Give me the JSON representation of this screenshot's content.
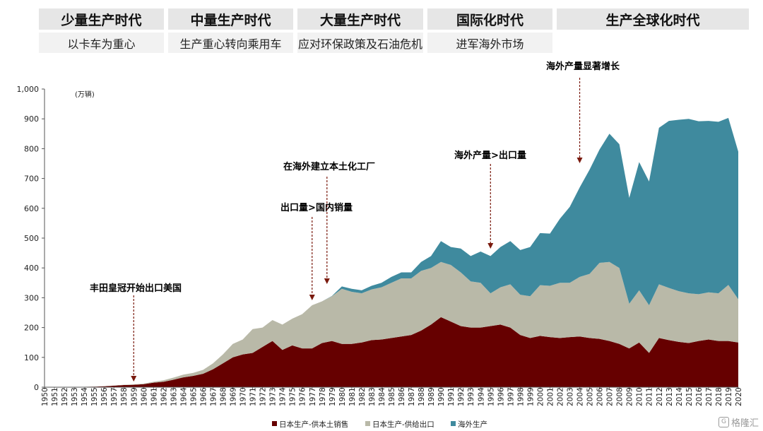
{
  "eras": [
    {
      "title": "少量生产时代",
      "subtitle": "以卡车为重心"
    },
    {
      "title": "中量生产时代",
      "subtitle": "生产重心转向乘用车"
    },
    {
      "title": "大量生产时代",
      "subtitle": "应对环保政策及石油危机"
    },
    {
      "title": "国际化时代",
      "subtitle": "进军海外市场"
    },
    {
      "title": "生产全球化时代",
      "subtitle": ""
    }
  ],
  "chart_data": {
    "type": "area",
    "stacked": true,
    "unit_label": "(万辆)",
    "ylim": [
      0,
      1000
    ],
    "y_ticks": [
      "0",
      "100",
      "200",
      "300",
      "400",
      "500",
      "600",
      "700",
      "800",
      "900",
      "1,000"
    ],
    "x": [
      1950,
      1951,
      1952,
      1953,
      1954,
      1955,
      1956,
      1957,
      1958,
      1959,
      1960,
      1961,
      1962,
      1963,
      1964,
      1965,
      1966,
      1967,
      1968,
      1969,
      1970,
      1971,
      1972,
      1973,
      1974,
      1975,
      1976,
      1977,
      1978,
      1979,
      1980,
      1981,
      1982,
      1983,
      1984,
      1985,
      1986,
      1987,
      1988,
      1989,
      1990,
      1991,
      1992,
      1993,
      1994,
      1995,
      1996,
      1997,
      1998,
      1999,
      2000,
      2001,
      2002,
      2003,
      2004,
      2005,
      2006,
      2007,
      2008,
      2009,
      2010,
      2011,
      2012,
      2013,
      2014,
      2015,
      2016,
      2017,
      2018,
      2019,
      2020
    ],
    "series": [
      {
        "name": "日本生产-供本土销售",
        "color": "#660000",
        "values": [
          0.5,
          0.7,
          0.9,
          1.0,
          1.3,
          1.8,
          3,
          5,
          7,
          8,
          10,
          15,
          18,
          25,
          33,
          38,
          45,
          60,
          80,
          100,
          110,
          115,
          135,
          155,
          125,
          140,
          130,
          130,
          148,
          155,
          145,
          145,
          150,
          158,
          160,
          165,
          170,
          175,
          190,
          210,
          235,
          220,
          205,
          200,
          200,
          205,
          210,
          200,
          175,
          165,
          172,
          168,
          165,
          168,
          170,
          165,
          162,
          155,
          145,
          130,
          150,
          115,
          165,
          158,
          152,
          148,
          155,
          160,
          155,
          155,
          150
        ]
      },
      {
        "name": "日本生产-供给出口",
        "color": "#b9b9a8",
        "values": [
          0,
          0,
          0,
          0,
          0,
          0.2,
          0.3,
          0.5,
          1,
          1.5,
          2,
          3,
          5,
          7,
          9,
          10,
          13,
          20,
          30,
          45,
          50,
          80,
          65,
          70,
          85,
          90,
          115,
          145,
          140,
          150,
          185,
          175,
          165,
          170,
          175,
          185,
          195,
          190,
          200,
          190,
          185,
          190,
          180,
          155,
          150,
          110,
          125,
          145,
          135,
          140,
          170,
          172,
          185,
          182,
          200,
          215,
          255,
          265,
          255,
          150,
          175,
          160,
          180,
          175,
          170,
          167,
          157,
          158,
          160,
          188,
          145
        ]
      },
      {
        "name": "海外生产",
        "color": "#3f8a9e",
        "values": [
          0,
          0,
          0,
          0,
          0,
          0,
          0,
          0,
          0,
          0,
          0,
          0,
          0,
          0,
          0,
          0,
          0,
          0,
          0,
          0,
          0,
          0,
          0,
          0,
          0,
          0,
          0,
          0,
          0,
          1,
          8,
          10,
          10,
          12,
          15,
          20,
          20,
          20,
          30,
          40,
          70,
          60,
          80,
          85,
          105,
          125,
          135,
          145,
          150,
          165,
          175,
          175,
          215,
          255,
          300,
          350,
          380,
          430,
          415,
          355,
          430,
          415,
          525,
          560,
          575,
          585,
          580,
          575,
          575,
          560,
          495
        ]
      }
    ],
    "annotations": [
      {
        "text": "丰田皇冠开始出口美国",
        "year": 1959
      },
      {
        "text": "出口量>国内销量",
        "year": 1977
      },
      {
        "text": "在海外建立本土化工厂",
        "year": 1978.5
      },
      {
        "text": "海外产量>出口量",
        "year": 1995
      },
      {
        "text": "海外产量显著增长",
        "year": 2004
      }
    ]
  },
  "watermark": {
    "icon_text": "G",
    "text": "格隆汇"
  }
}
